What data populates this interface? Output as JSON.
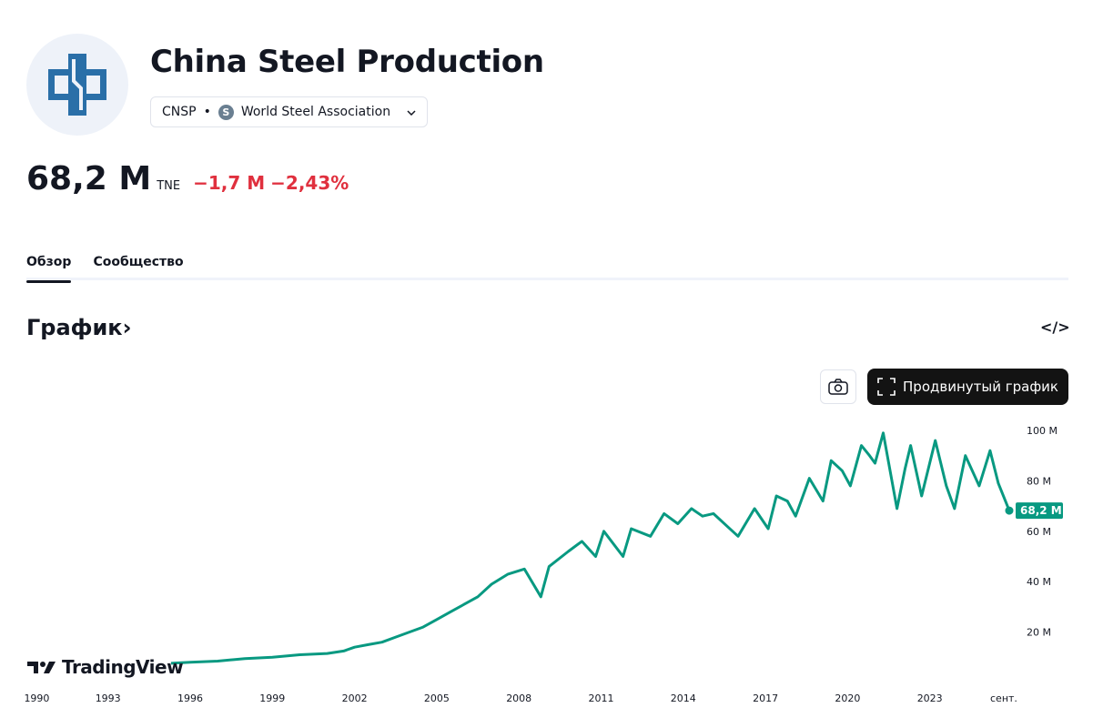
{
  "header": {
    "title": "China Steel Production",
    "symbol": "CNSP",
    "separator": "•",
    "source_badge": "S",
    "source": "World Steel Association"
  },
  "quote": {
    "value": "68,2 M",
    "unit": "TNE",
    "change": "−1,7 M",
    "change_pct": "−2,43%"
  },
  "tabs": [
    {
      "label": "Обзор",
      "active": true
    },
    {
      "label": "Сообщество",
      "active": false
    }
  ],
  "section": {
    "title": "График",
    "arrow": "›",
    "embed": "</>"
  },
  "toolbar": {
    "advanced_label": "Продвинутый график"
  },
  "watermark": "TradingView",
  "colors": {
    "line": "#089981",
    "negative": "#e0303e",
    "logo": "#2a6fa8"
  },
  "chart_data": {
    "type": "line",
    "ylabel": "",
    "xlabel": "",
    "ylim": [
      0,
      100
    ],
    "y_ticks": [
      "20 M",
      "40 M",
      "60 M",
      "80 M",
      "100 M"
    ],
    "y_tick_values": [
      20,
      40,
      60,
      80,
      100
    ],
    "x_ticks": [
      "1990",
      "1993",
      "1996",
      "1999",
      "2002",
      "2005",
      "2008",
      "2011",
      "2014",
      "2017",
      "2020",
      "2023",
      "сент."
    ],
    "x_tick_values": [
      1990.4,
      1993,
      1996,
      1999,
      2002,
      2005,
      2008,
      2011,
      2014,
      2017,
      2020,
      2023,
      2025.7
    ],
    "last_value_label": "68,2 M",
    "series": [
      {
        "name": "CNSP",
        "x": [
          1995.3,
          1996,
          1997,
          1998,
          1999,
          2000,
          2001,
          2001.6,
          2002,
          2002.5,
          2003,
          2003.5,
          2004,
          2004.5,
          2005,
          2005.5,
          2006,
          2006.5,
          2007,
          2007.6,
          2008.2,
          2008.8,
          2009.1,
          2009.8,
          2010.3,
          2010.8,
          2011.1,
          2011.8,
          2012.1,
          2012.8,
          2013.3,
          2013.8,
          2014.3,
          2014.7,
          2015.1,
          2015.6,
          2016,
          2016.6,
          2017.1,
          2017.4,
          2017.8,
          2018.1,
          2018.6,
          2019.1,
          2019.4,
          2019.8,
          2020.1,
          2020.5,
          2020.8,
          2021,
          2021.3,
          2021.8,
          2022.1,
          2022.3,
          2022.7,
          2023.2,
          2023.6,
          2023.9,
          2024.3,
          2024.8,
          2025.2,
          2025.5,
          2025.9
        ],
        "values": [
          7.6,
          8,
          8.5,
          9.5,
          10,
          11,
          11.5,
          12.5,
          14,
          15,
          16,
          18,
          20,
          22,
          25,
          28,
          31,
          34,
          39,
          43,
          45,
          34,
          46,
          52,
          56,
          50,
          60,
          50,
          61,
          58,
          67,
          63,
          69,
          66,
          67,
          62,
          58,
          69,
          61,
          74,
          72,
          66,
          81,
          72,
          88,
          84,
          78,
          94,
          90,
          87,
          99,
          69,
          85,
          94,
          74,
          96,
          78,
          69,
          90,
          78,
          92,
          79,
          68.2
        ]
      }
    ]
  }
}
